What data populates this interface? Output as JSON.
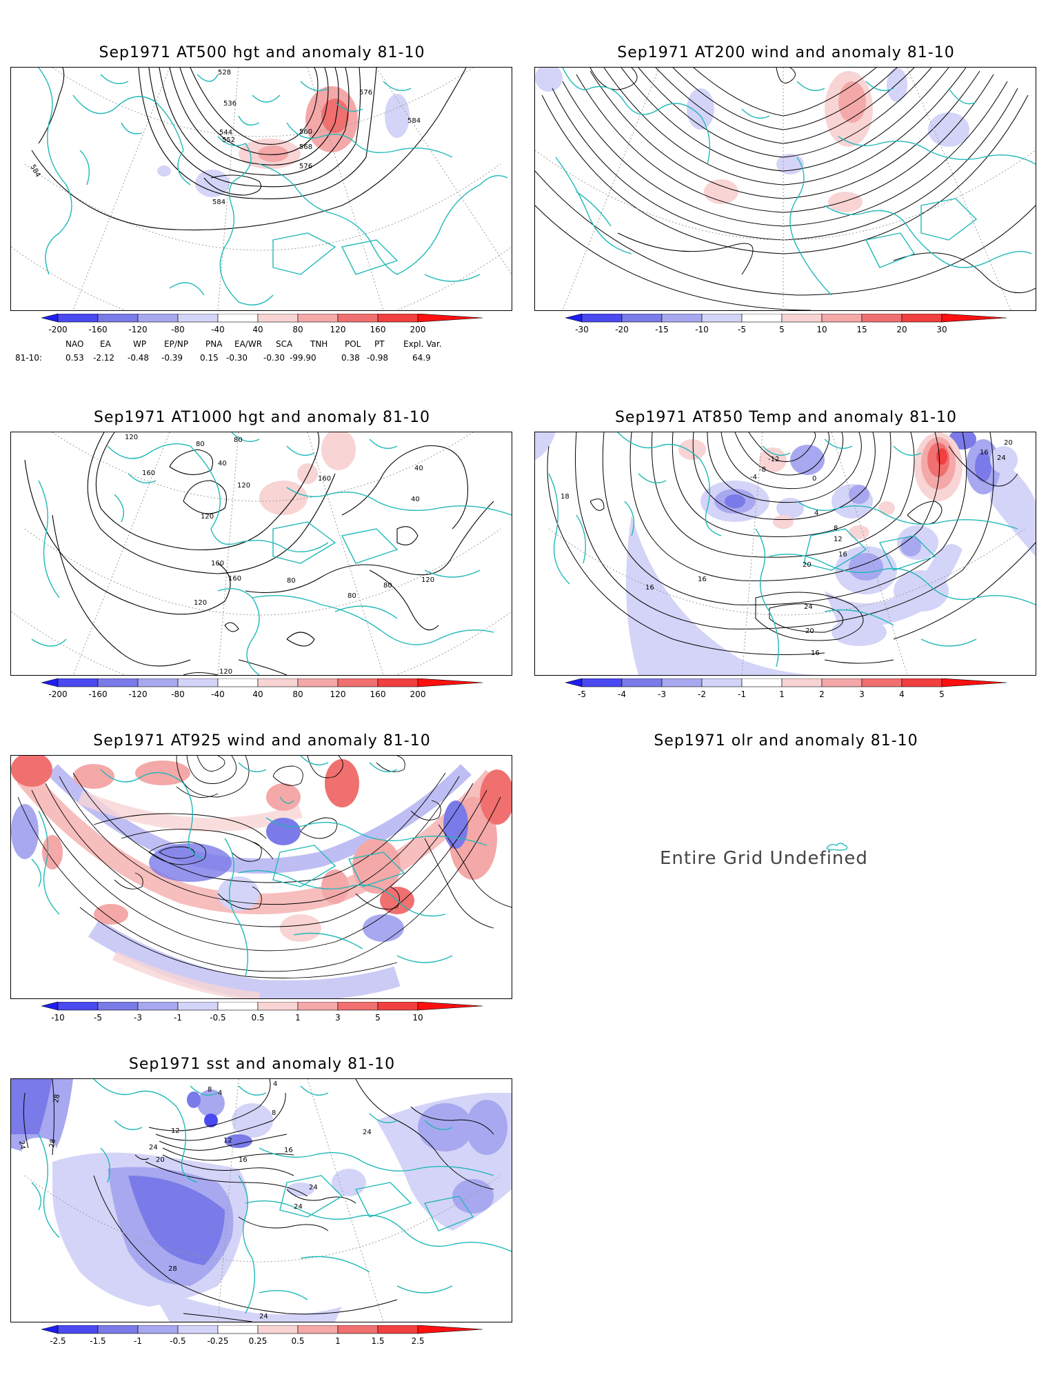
{
  "panels": [
    {
      "id": "p1",
      "title": "Sep1971 AT500 hgt and anomaly 81-10",
      "contour_labels": [
        "528",
        "536",
        "544",
        "552",
        "560",
        "568",
        "576",
        "576",
        "584",
        "584",
        "584"
      ],
      "colorbar": [
        "-200",
        "-160",
        "-120",
        "-80",
        "-40",
        "40",
        "80",
        "120",
        "160",
        "200"
      ]
    },
    {
      "id": "p2",
      "title": "Sep1971 AT200 wind and anomaly 81-10",
      "colorbar": [
        "-30",
        "-20",
        "-15",
        "-10",
        "-5",
        "5",
        "10",
        "15",
        "20",
        "30"
      ]
    },
    {
      "id": "p3",
      "title": "Sep1971 AT1000 hgt and anomaly 81-10",
      "contour_labels": [
        "120",
        "80",
        "80",
        "40",
        "160",
        "120",
        "120",
        "160",
        "40",
        "40",
        "160",
        "160",
        "120",
        "80",
        "80",
        "120",
        "80",
        "120"
      ],
      "colorbar": [
        "-200",
        "-160",
        "-120",
        "-80",
        "-40",
        "40",
        "80",
        "120",
        "160",
        "200"
      ]
    },
    {
      "id": "p4",
      "title": "Sep1971 AT850 Temp and anomaly 81-10",
      "contour_labels": [
        "-12",
        "-8",
        "-4",
        "0",
        "4",
        "8",
        "12",
        "16",
        "20",
        "24",
        "24",
        "20",
        "16",
        "16",
        "16",
        "18",
        "16",
        "20"
      ],
      "colorbar": [
        "-5",
        "-4",
        "-3",
        "-2",
        "-1",
        "1",
        "2",
        "3",
        "4",
        "5"
      ]
    },
    {
      "id": "p5",
      "title": "Sep1971 AT925 wind and anomaly 81-10",
      "colorbar": [
        "-10",
        "-5",
        "-3",
        "-1",
        "-0.5",
        "0.5",
        "1",
        "3",
        "5",
        "10"
      ]
    },
    {
      "id": "p6",
      "title": "Sep1971 olr and anomaly 81-10",
      "message": "Entire Grid Undefined"
    },
    {
      "id": "p7",
      "title": "Sep1971 sst and anomaly 81-10",
      "contour_labels": [
        "28",
        "24",
        "28",
        "12",
        "8",
        "4",
        "4",
        "8",
        "12",
        "16",
        "20",
        "24",
        "16",
        "24",
        "24",
        "28",
        "24",
        "24"
      ],
      "colorbar": [
        "-2.5",
        "-1.5",
        "-1",
        "-0.5",
        "-0.25",
        "0.25",
        "0.5",
        "1",
        "1.5",
        "2.5"
      ]
    }
  ],
  "teleconnections": {
    "row_label": "81-10:",
    "headers": [
      "NAO",
      "EA",
      "WP",
      "EP/NP",
      "PNA",
      "EA/WR",
      "SCA",
      "TNH",
      "POL",
      "PT",
      "Expl. Var."
    ],
    "values": [
      "0.53",
      "-2.12",
      "-0.48",
      "-0.39",
      "0.15",
      "-0.30",
      "-0.30",
      "-99.90",
      "0.38",
      "-0.98",
      "64.9"
    ]
  },
  "colors": {
    "coast": "#20b8b8",
    "contour": "#000000",
    "grid": "#9a9a9a",
    "scale": [
      "#1e1ef0",
      "#4a4af0",
      "#7a7ae8",
      "#a8a8f0",
      "#d4d4f8",
      "#ffffff",
      "#f8d4d4",
      "#f4a8a8",
      "#f07070",
      "#f04040",
      "#ff1010"
    ]
  }
}
